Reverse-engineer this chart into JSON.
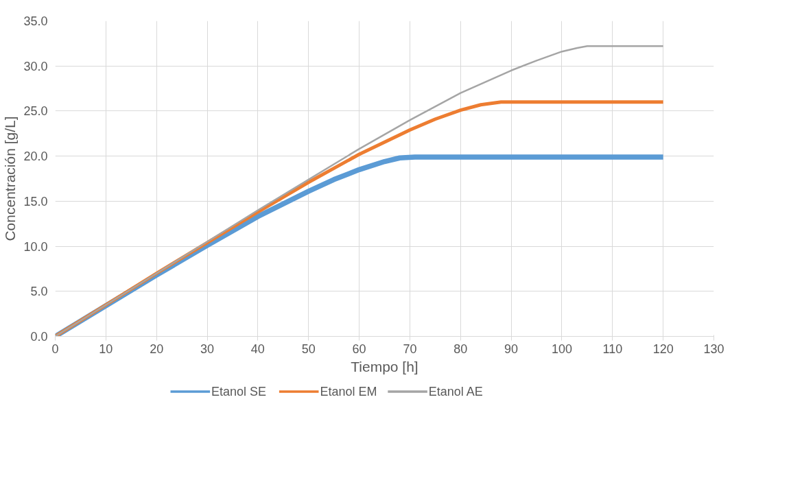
{
  "chart_data": {
    "type": "line",
    "xlabel": "Tiempo [h]",
    "ylabel": "Concentración [g/L]",
    "xlim": [
      0,
      130
    ],
    "xticks": [
      0,
      10,
      20,
      30,
      40,
      50,
      60,
      70,
      80,
      90,
      100,
      110,
      120,
      130
    ],
    "ylim": [
      0,
      35
    ],
    "yticks": [
      {
        "value": 0,
        "label": "0.0"
      },
      {
        "value": 5,
        "label": "5.0"
      },
      {
        "value": 10,
        "label": "10.0"
      },
      {
        "value": 15,
        "label": "15.0"
      },
      {
        "value": 20,
        "label": "20.0"
      },
      {
        "value": 25,
        "label": "25.0"
      },
      {
        "value": 30,
        "label": "30.0"
      },
      {
        "value": 35,
        "label": "35.0"
      }
    ],
    "grid": true,
    "legend": "bottom",
    "marker": "none",
    "line_style": "solid",
    "series": [
      {
        "name": "Etanol SE",
        "color": "#5b9bd5",
        "x": [
          0,
          10,
          20,
          30,
          40,
          50,
          55,
          60,
          65,
          68,
          71,
          120
        ],
        "values": [
          0,
          3.4,
          6.8,
          10.1,
          13.3,
          16.1,
          17.4,
          18.5,
          19.4,
          19.8,
          19.9,
          19.9
        ]
      },
      {
        "name": "Etanol EM",
        "color": "#ed7d31",
        "x": [
          0,
          10,
          20,
          30,
          40,
          50,
          60,
          70,
          75,
          80,
          84,
          88,
          120
        ],
        "values": [
          0,
          3.5,
          7.0,
          10.4,
          13.8,
          17.1,
          20.2,
          22.9,
          24.1,
          25.1,
          25.7,
          26.0,
          26.0
        ]
      },
      {
        "name": "Etanol AE",
        "color": "#a5a5a5",
        "x": [
          0,
          10,
          20,
          30,
          40,
          50,
          60,
          70,
          80,
          90,
          95,
          100,
          103,
          105,
          120
        ],
        "values": [
          0,
          3.5,
          7.0,
          10.5,
          14.0,
          17.4,
          20.8,
          24.0,
          27.0,
          29.5,
          30.6,
          31.6,
          32.0,
          32.2,
          32.2
        ]
      }
    ]
  }
}
